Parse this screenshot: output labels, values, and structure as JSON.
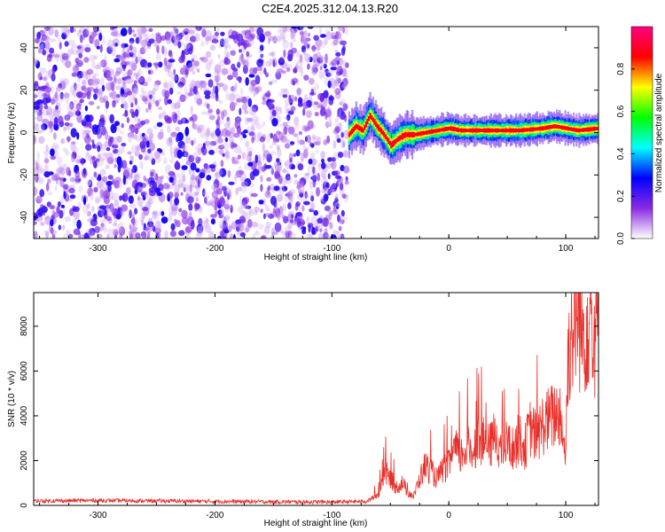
{
  "chart_data": [
    {
      "type": "heatmap",
      "title": "C2E4.2025.312.04.13.R20",
      "xlabel": "Height of straight line (km)",
      "ylabel": "Frequency (Hz)",
      "xlim": [
        -355,
        128
      ],
      "ylim": [
        -50,
        50
      ],
      "x_ticks": [
        "-300",
        "-200",
        "-100",
        "0",
        "100"
      ],
      "y_ticks": [
        "-40",
        "-20",
        "0",
        "20",
        "40"
      ],
      "noise_region_x": [
        -355,
        -87
      ],
      "signal_track": {
        "x": [
          -86,
          -80,
          -74,
          -68,
          -62,
          -56,
          -50,
          -44,
          -38,
          -30,
          -20,
          -10,
          0,
          10,
          20,
          40,
          60,
          80,
          90,
          100,
          110,
          128
        ],
        "freq": [
          -1,
          3,
          1,
          8,
          3,
          -1,
          -6,
          -3,
          -1,
          -1,
          0,
          1,
          2,
          1,
          1,
          1,
          1,
          2,
          3,
          2,
          1,
          2
        ]
      },
      "colorbar": {
        "label": "Normalized spectral amplitude",
        "range": [
          0,
          1
        ],
        "ticks": [
          "0.0",
          "0.2",
          "0.4",
          "0.6",
          "0.8"
        ],
        "colors": [
          "#ffffff",
          "#8a2be2",
          "#0000ff",
          "#00ffff",
          "#00ff00",
          "#ffff00",
          "#ff0000",
          "#ff0080"
        ]
      },
      "grid": false
    },
    {
      "type": "line",
      "title": "",
      "xlabel": "Height of straight line (km)",
      "ylabel": "SNR (10 * v/v)",
      "xlim": [
        -355,
        128
      ],
      "ylim": [
        0,
        9500
      ],
      "x_ticks": [
        "-300",
        "-200",
        "-100",
        "0",
        "100"
      ],
      "y_ticks": [
        "0",
        "2000",
        "4000",
        "6000",
        "8000"
      ],
      "series": [
        {
          "color": "#e8302a",
          "x": [
            -355,
            -300,
            -250,
            -200,
            -150,
            -100,
            -70,
            -60,
            -55,
            -50,
            -45,
            -40,
            -35,
            -30,
            -25,
            -20,
            -15,
            -10,
            -5,
            0,
            5,
            10,
            15,
            20,
            25,
            30,
            35,
            40,
            45,
            50,
            55,
            60,
            65,
            70,
            75,
            80,
            85,
            90,
            95,
            100,
            102,
            105,
            110,
            115,
            120,
            125,
            128
          ],
          "y": [
            200,
            220,
            200,
            180,
            160,
            150,
            180,
            500,
            1500,
            1200,
            800,
            1000,
            600,
            400,
            1200,
            1800,
            1500,
            1200,
            1600,
            1800,
            2500,
            2200,
            2600,
            2400,
            3000,
            2800,
            2600,
            3200,
            2400,
            2800,
            2500,
            3000,
            2600,
            3500,
            3000,
            3600,
            3800,
            4000,
            4200,
            2200,
            7000,
            7800,
            8600,
            7500,
            8800,
            7800,
            8200
          ]
        }
      ],
      "grid": false
    }
  ]
}
